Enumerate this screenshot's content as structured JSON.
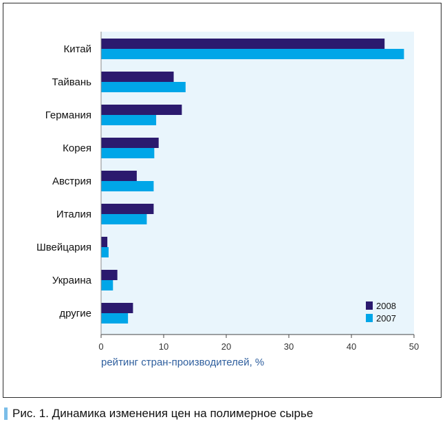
{
  "chart_data": {
    "type": "bar",
    "orientation": "horizontal",
    "categories": [
      "Китай",
      "Тайвань",
      "Германия",
      "Корея",
      "Австрия",
      "Италия",
      "Швейцария",
      "Украина",
      "другие"
    ],
    "series": [
      {
        "name": "2008",
        "values": [
          45.3,
          11.6,
          12.9,
          9.2,
          5.7,
          8.4,
          1.0,
          2.6,
          5.1
        ],
        "color": "#2b1a6e"
      },
      {
        "name": "2007",
        "values": [
          48.4,
          13.5,
          8.8,
          8.5,
          8.4,
          7.3,
          1.2,
          1.9,
          4.3
        ],
        "color": "#00a6e8"
      }
    ],
    "xlabel": "рейтинг стран-производителей, %",
    "xlim": [
      0,
      50
    ],
    "xticks": [
      0,
      10,
      20,
      30,
      40,
      50
    ],
    "grid": false,
    "legend": "bottom-right",
    "background": "#e9f5fc"
  },
  "caption": "Рис. 1. Динамика изменения цен на полимерное сырье"
}
